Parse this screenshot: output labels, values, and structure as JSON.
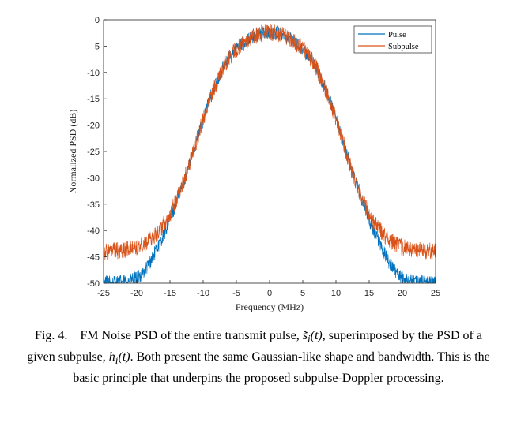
{
  "chart_data": {
    "type": "line",
    "xlabel": "Frequency (MHz)",
    "ylabel": "Normalized PSD (dB)",
    "xlim": [
      -25,
      25
    ],
    "ylim": [
      -50,
      0
    ],
    "xticks": [
      "-25",
      "-20",
      "-15",
      "-10",
      "-5",
      "0",
      "5",
      "10",
      "15",
      "20",
      "25"
    ],
    "yticks": [
      "0",
      "-5",
      "-10",
      "-15",
      "-20",
      "-25",
      "-30",
      "-35",
      "-40",
      "-45",
      "-50"
    ],
    "grid": false,
    "legend_position": "top-right",
    "series": [
      {
        "name": "Pulse",
        "color": "#0072BD",
        "x": [
          -25,
          -22,
          -20,
          -19,
          -18,
          -17,
          -16,
          -15,
          -14,
          -13,
          -12,
          -11,
          -10,
          -9,
          -8,
          -7,
          -6,
          -5,
          -4,
          -3,
          -2,
          -1,
          0,
          1,
          2,
          3,
          4,
          5,
          6,
          7,
          8,
          9,
          10,
          11,
          12,
          13,
          14,
          15,
          16,
          17,
          18,
          19,
          20,
          22,
          25
        ],
        "y": [
          -49.9,
          -49.7,
          -49,
          -48,
          -46,
          -43.5,
          -41,
          -38,
          -34.5,
          -31,
          -27,
          -23,
          -19,
          -15,
          -12,
          -9,
          -7,
          -5.5,
          -4.5,
          -3.5,
          -3,
          -2.5,
          -2.3,
          -2.5,
          -3,
          -3.5,
          -4.5,
          -5.5,
          -7,
          -9,
          -12,
          -15,
          -19,
          -23,
          -27,
          -31,
          -34.5,
          -38,
          -41,
          -43.5,
          -46,
          -48,
          -49,
          -49.7,
          -49.9
        ]
      },
      {
        "name": "Subpulse",
        "color": "#D95319",
        "x": [
          -25,
          -22,
          -20,
          -19,
          -18,
          -17,
          -16,
          -15,
          -14,
          -13,
          -12,
          -11,
          -10,
          -9,
          -8,
          -7,
          -6,
          -5,
          -4,
          -3,
          -2,
          -1,
          0,
          1,
          2,
          3,
          4,
          5,
          6,
          7,
          8,
          9,
          10,
          11,
          12,
          13,
          14,
          15,
          16,
          17,
          18,
          19,
          20,
          22,
          25
        ],
        "y": [
          -44,
          -43.8,
          -43.2,
          -42.5,
          -41.7,
          -40.5,
          -39,
          -37,
          -34,
          -31,
          -27,
          -23,
          -19,
          -15,
          -12,
          -9,
          -7,
          -5.5,
          -4.5,
          -3.5,
          -3,
          -2.5,
          -2.3,
          -2.5,
          -3,
          -3.5,
          -4.5,
          -5.5,
          -7,
          -9,
          -12,
          -15,
          -19,
          -23,
          -27,
          -31,
          -34,
          -37,
          -39,
          -40.5,
          -41.7,
          -42.5,
          -43.2,
          -43.8,
          -44
        ]
      }
    ]
  },
  "caption": {
    "label": "Fig. 4.",
    "text_before_s": "FM Noise PSD of the entire transmit pulse,",
    "s_symbol": "s̃",
    "s_sub": "i",
    "s_arg": "(t)",
    "text_after_s": ", superimposed by the PSD of a given subpulse,",
    "h_symbol": "h",
    "h_sub": "i",
    "h_arg": "(t)",
    "text_after_h": ". Both present the same Gaussian-like shape and bandwidth. This is the basic principle that underpins the proposed subpulse-Doppler processing."
  }
}
